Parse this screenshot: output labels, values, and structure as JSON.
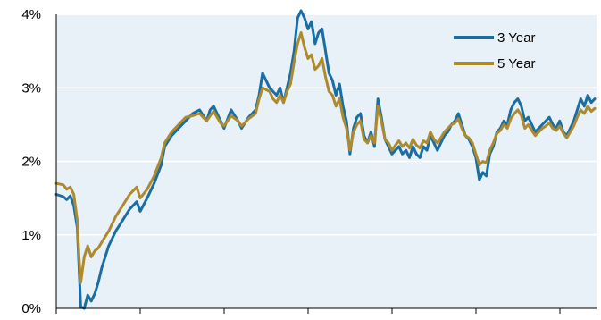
{
  "chart_data": {
    "type": "line",
    "title": "",
    "xlabel": "",
    "ylabel": "",
    "ylim": [
      0,
      4
    ],
    "y_ticks": [
      {
        "value": 0,
        "label": "0%"
      },
      {
        "value": 1,
        "label": "1%"
      },
      {
        "value": 2,
        "label": "2%"
      },
      {
        "value": 3,
        "label": "3%"
      },
      {
        "value": 4,
        "label": "4%"
      }
    ],
    "x_tick_count": 7,
    "grid": "horizontal",
    "legend_position": "top-right",
    "background_color": "#e8f0f8",
    "series": [
      {
        "name": "3 Year",
        "color": "#1a6ea4",
        "points": [
          [
            0,
            1.55
          ],
          [
            2,
            1.52
          ],
          [
            3,
            1.48
          ],
          [
            4,
            1.53
          ],
          [
            5,
            1.4
          ],
          [
            6,
            1.1
          ],
          [
            6.5,
            0.55
          ],
          [
            7,
            0.02
          ],
          [
            8,
            0.0
          ],
          [
            9,
            0.18
          ],
          [
            10,
            0.1
          ],
          [
            11,
            0.2
          ],
          [
            12,
            0.35
          ],
          [
            13,
            0.55
          ],
          [
            15,
            0.85
          ],
          [
            17,
            1.05
          ],
          [
            19,
            1.2
          ],
          [
            21,
            1.35
          ],
          [
            23,
            1.45
          ],
          [
            24,
            1.32
          ],
          [
            26,
            1.5
          ],
          [
            28,
            1.7
          ],
          [
            30,
            1.95
          ],
          [
            31,
            2.2
          ],
          [
            33,
            2.35
          ],
          [
            35,
            2.45
          ],
          [
            37,
            2.55
          ],
          [
            39,
            2.65
          ],
          [
            41,
            2.7
          ],
          [
            43,
            2.55
          ],
          [
            44,
            2.7
          ],
          [
            45,
            2.75
          ],
          [
            47,
            2.55
          ],
          [
            48,
            2.45
          ],
          [
            50,
            2.7
          ],
          [
            52,
            2.55
          ],
          [
            53,
            2.45
          ],
          [
            55,
            2.6
          ],
          [
            57,
            2.7
          ],
          [
            58,
            2.9
          ],
          [
            59,
            3.2
          ],
          [
            61,
            3.0
          ],
          [
            62,
            2.95
          ],
          [
            63,
            2.9
          ],
          [
            64,
            3.0
          ],
          [
            65,
            2.8
          ],
          [
            66,
            3.0
          ],
          [
            67,
            3.2
          ],
          [
            68,
            3.5
          ],
          [
            69,
            3.95
          ],
          [
            70,
            4.1
          ],
          [
            71,
            3.95
          ],
          [
            72,
            3.8
          ],
          [
            73,
            3.9
          ],
          [
            74,
            3.6
          ],
          [
            75,
            3.75
          ],
          [
            76,
            3.8
          ],
          [
            77,
            3.5
          ],
          [
            78,
            3.2
          ],
          [
            79,
            3.1
          ],
          [
            80,
            2.9
          ],
          [
            81,
            3.05
          ],
          [
            82,
            2.75
          ],
          [
            83,
            2.55
          ],
          [
            84,
            2.1
          ],
          [
            85,
            2.45
          ],
          [
            86,
            2.6
          ],
          [
            87,
            2.65
          ],
          [
            88,
            2.35
          ],
          [
            89,
            2.25
          ],
          [
            90,
            2.4
          ],
          [
            91,
            2.2
          ],
          [
            92,
            2.85
          ],
          [
            93,
            2.6
          ],
          [
            94,
            2.3
          ],
          [
            95,
            2.2
          ],
          [
            96,
            2.1
          ],
          [
            97,
            2.15
          ],
          [
            98,
            2.2
          ],
          [
            99,
            2.1
          ],
          [
            100,
            2.15
          ],
          [
            101,
            2.05
          ],
          [
            102,
            2.2
          ],
          [
            103,
            2.1
          ],
          [
            104,
            2.05
          ],
          [
            105,
            2.2
          ],
          [
            106,
            2.15
          ],
          [
            107,
            2.35
          ],
          [
            108,
            2.25
          ],
          [
            109,
            2.15
          ],
          [
            110,
            2.25
          ],
          [
            111,
            2.35
          ],
          [
            112,
            2.4
          ],
          [
            113,
            2.5
          ],
          [
            114,
            2.55
          ],
          [
            115,
            2.65
          ],
          [
            116,
            2.5
          ],
          [
            117,
            2.35
          ],
          [
            118,
            2.3
          ],
          [
            119,
            2.2
          ],
          [
            120,
            2.05
          ],
          [
            121,
            1.75
          ],
          [
            122,
            1.85
          ],
          [
            123,
            1.8
          ],
          [
            124,
            2.1
          ],
          [
            125,
            2.2
          ],
          [
            126,
            2.4
          ],
          [
            127,
            2.45
          ],
          [
            128,
            2.55
          ],
          [
            129,
            2.5
          ],
          [
            130,
            2.7
          ],
          [
            131,
            2.8
          ],
          [
            132,
            2.85
          ],
          [
            133,
            2.75
          ],
          [
            134,
            2.55
          ],
          [
            135,
            2.6
          ],
          [
            136,
            2.5
          ],
          [
            137,
            2.4
          ],
          [
            138,
            2.45
          ],
          [
            139,
            2.5
          ],
          [
            140,
            2.55
          ],
          [
            141,
            2.6
          ],
          [
            142,
            2.5
          ],
          [
            143,
            2.45
          ],
          [
            144,
            2.55
          ],
          [
            145,
            2.4
          ],
          [
            146,
            2.35
          ],
          [
            147,
            2.45
          ],
          [
            148,
            2.55
          ],
          [
            149,
            2.7
          ],
          [
            150,
            2.85
          ],
          [
            151,
            2.75
          ],
          [
            152,
            2.9
          ],
          [
            153,
            2.8
          ],
          [
            154,
            2.85
          ]
        ]
      },
      {
        "name": "5 Year",
        "color": "#ad8a2c",
        "points": [
          [
            0,
            1.7
          ],
          [
            2,
            1.68
          ],
          [
            3,
            1.62
          ],
          [
            4,
            1.65
          ],
          [
            5,
            1.55
          ],
          [
            6,
            1.2
          ],
          [
            6.5,
            0.7
          ],
          [
            7,
            0.35
          ],
          [
            8,
            0.7
          ],
          [
            9,
            0.85
          ],
          [
            10,
            0.7
          ],
          [
            11,
            0.78
          ],
          [
            12,
            0.82
          ],
          [
            13,
            0.9
          ],
          [
            15,
            1.05
          ],
          [
            17,
            1.25
          ],
          [
            19,
            1.4
          ],
          [
            21,
            1.55
          ],
          [
            23,
            1.65
          ],
          [
            24,
            1.5
          ],
          [
            26,
            1.62
          ],
          [
            28,
            1.8
          ],
          [
            30,
            2.05
          ],
          [
            31,
            2.25
          ],
          [
            33,
            2.4
          ],
          [
            35,
            2.5
          ],
          [
            37,
            2.6
          ],
          [
            39,
            2.62
          ],
          [
            41,
            2.65
          ],
          [
            43,
            2.55
          ],
          [
            44,
            2.62
          ],
          [
            45,
            2.68
          ],
          [
            47,
            2.52
          ],
          [
            48,
            2.48
          ],
          [
            50,
            2.62
          ],
          [
            52,
            2.55
          ],
          [
            53,
            2.48
          ],
          [
            55,
            2.58
          ],
          [
            57,
            2.65
          ],
          [
            58,
            2.85
          ],
          [
            59,
            3.0
          ],
          [
            61,
            2.95
          ],
          [
            62,
            2.85
          ],
          [
            63,
            2.8
          ],
          [
            64,
            2.9
          ],
          [
            65,
            2.8
          ],
          [
            66,
            2.95
          ],
          [
            67,
            3.05
          ],
          [
            68,
            3.35
          ],
          [
            69,
            3.6
          ],
          [
            70,
            3.75
          ],
          [
            71,
            3.55
          ],
          [
            72,
            3.4
          ],
          [
            73,
            3.45
          ],
          [
            74,
            3.25
          ],
          [
            75,
            3.3
          ],
          [
            76,
            3.4
          ],
          [
            77,
            3.15
          ],
          [
            78,
            2.95
          ],
          [
            79,
            2.9
          ],
          [
            80,
            2.75
          ],
          [
            81,
            2.85
          ],
          [
            82,
            2.6
          ],
          [
            83,
            2.45
          ],
          [
            84,
            2.15
          ],
          [
            85,
            2.4
          ],
          [
            86,
            2.5
          ],
          [
            87,
            2.55
          ],
          [
            88,
            2.3
          ],
          [
            89,
            2.25
          ],
          [
            90,
            2.35
          ],
          [
            91,
            2.25
          ],
          [
            92,
            2.75
          ],
          [
            93,
            2.55
          ],
          [
            94,
            2.3
          ],
          [
            95,
            2.25
          ],
          [
            96,
            2.15
          ],
          [
            97,
            2.22
          ],
          [
            98,
            2.28
          ],
          [
            99,
            2.2
          ],
          [
            100,
            2.25
          ],
          [
            101,
            2.18
          ],
          [
            102,
            2.3
          ],
          [
            103,
            2.22
          ],
          [
            104,
            2.18
          ],
          [
            105,
            2.28
          ],
          [
            106,
            2.25
          ],
          [
            107,
            2.4
          ],
          [
            108,
            2.3
          ],
          [
            109,
            2.25
          ],
          [
            110,
            2.32
          ],
          [
            111,
            2.4
          ],
          [
            112,
            2.45
          ],
          [
            113,
            2.5
          ],
          [
            114,
            2.52
          ],
          [
            115,
            2.58
          ],
          [
            116,
            2.45
          ],
          [
            117,
            2.35
          ],
          [
            118,
            2.32
          ],
          [
            119,
            2.25
          ],
          [
            120,
            2.1
          ],
          [
            121,
            1.95
          ],
          [
            122,
            2.0
          ],
          [
            123,
            1.98
          ],
          [
            124,
            2.15
          ],
          [
            125,
            2.25
          ],
          [
            126,
            2.38
          ],
          [
            127,
            2.42
          ],
          [
            128,
            2.5
          ],
          [
            129,
            2.45
          ],
          [
            130,
            2.58
          ],
          [
            131,
            2.65
          ],
          [
            132,
            2.7
          ],
          [
            133,
            2.62
          ],
          [
            134,
            2.45
          ],
          [
            135,
            2.5
          ],
          [
            136,
            2.42
          ],
          [
            137,
            2.35
          ],
          [
            138,
            2.4
          ],
          [
            139,
            2.45
          ],
          [
            140,
            2.48
          ],
          [
            141,
            2.52
          ],
          [
            142,
            2.45
          ],
          [
            143,
            2.42
          ],
          [
            144,
            2.48
          ],
          [
            145,
            2.38
          ],
          [
            146,
            2.32
          ],
          [
            147,
            2.4
          ],
          [
            148,
            2.48
          ],
          [
            149,
            2.6
          ],
          [
            150,
            2.7
          ],
          [
            151,
            2.65
          ],
          [
            152,
            2.75
          ],
          [
            153,
            2.68
          ],
          [
            154,
            2.72
          ]
        ]
      }
    ]
  }
}
